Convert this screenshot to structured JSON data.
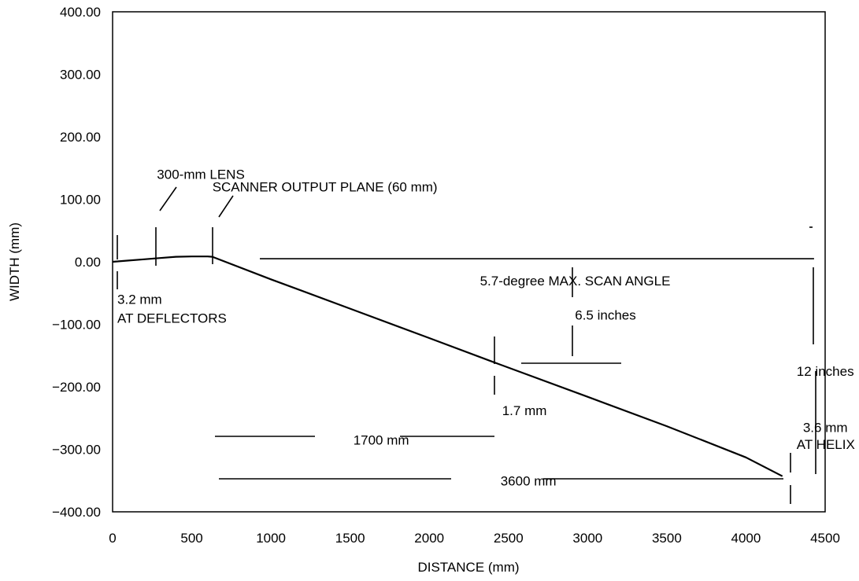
{
  "chart_data": {
    "type": "line",
    "xlabel": "DISTANCE (mm)",
    "ylabel": "WIDTH (mm)",
    "xlim": [
      0,
      4500
    ],
    "ylim": [
      -400,
      400
    ],
    "x_ticks": [
      "0",
      "500",
      "1000",
      "1500",
      "2000",
      "2500",
      "3000",
      "3500",
      "4000",
      "4500"
    ],
    "y_ticks": [
      "400.00",
      "300.00",
      "200.00",
      "100.00",
      "0.00",
      "-100.00",
      "-200.00",
      "-300.00",
      "-400.00"
    ],
    "grid": false,
    "series": [
      {
        "x": [
          0,
          100,
          200,
          300,
          400,
          500,
          600,
          630,
          1000,
          1500,
          2000,
          2400,
          3000,
          3500,
          4000,
          4230
        ],
        "y": [
          0,
          2,
          4,
          6,
          8,
          8.5,
          8.5,
          8,
          -28,
          -75,
          -122,
          -160,
          -216,
          -263,
          -313,
          -343
        ]
      }
    ],
    "reference_line": {
      "x": [
        930,
        4430
      ],
      "y": [
        5,
        5
      ]
    },
    "annotations": [
      {
        "text": "300-mm LENS",
        "x": 280,
        "y": 140
      },
      {
        "text": "SCANNER OUTPUT PLANE (60 mm)",
        "x": 630,
        "y": 120
      },
      {
        "text": "3.2 mm",
        "x": 30,
        "y": -60
      },
      {
        "text": "AT DEFLECTORS",
        "x": 30,
        "y": -90
      },
      {
        "text": "5.7-degree MAX. SCAN ANGLE",
        "x": 2320,
        "y": -30
      },
      {
        "text": "6.5 inches",
        "x": 2920,
        "y": -85
      },
      {
        "text": "12 inches",
        "x": 4320,
        "y": -175
      },
      {
        "text": "1.7 mm",
        "x": 2460,
        "y": -238
      },
      {
        "text": "1700 mm",
        "x": 1520,
        "y": -285
      },
      {
        "text": "3.6 mm",
        "x": 4360,
        "y": -265
      },
      {
        "text": "AT HELIX",
        "x": 4320,
        "y": -292
      },
      {
        "text": "3600 mm",
        "x": 2450,
        "y": -350
      }
    ]
  }
}
